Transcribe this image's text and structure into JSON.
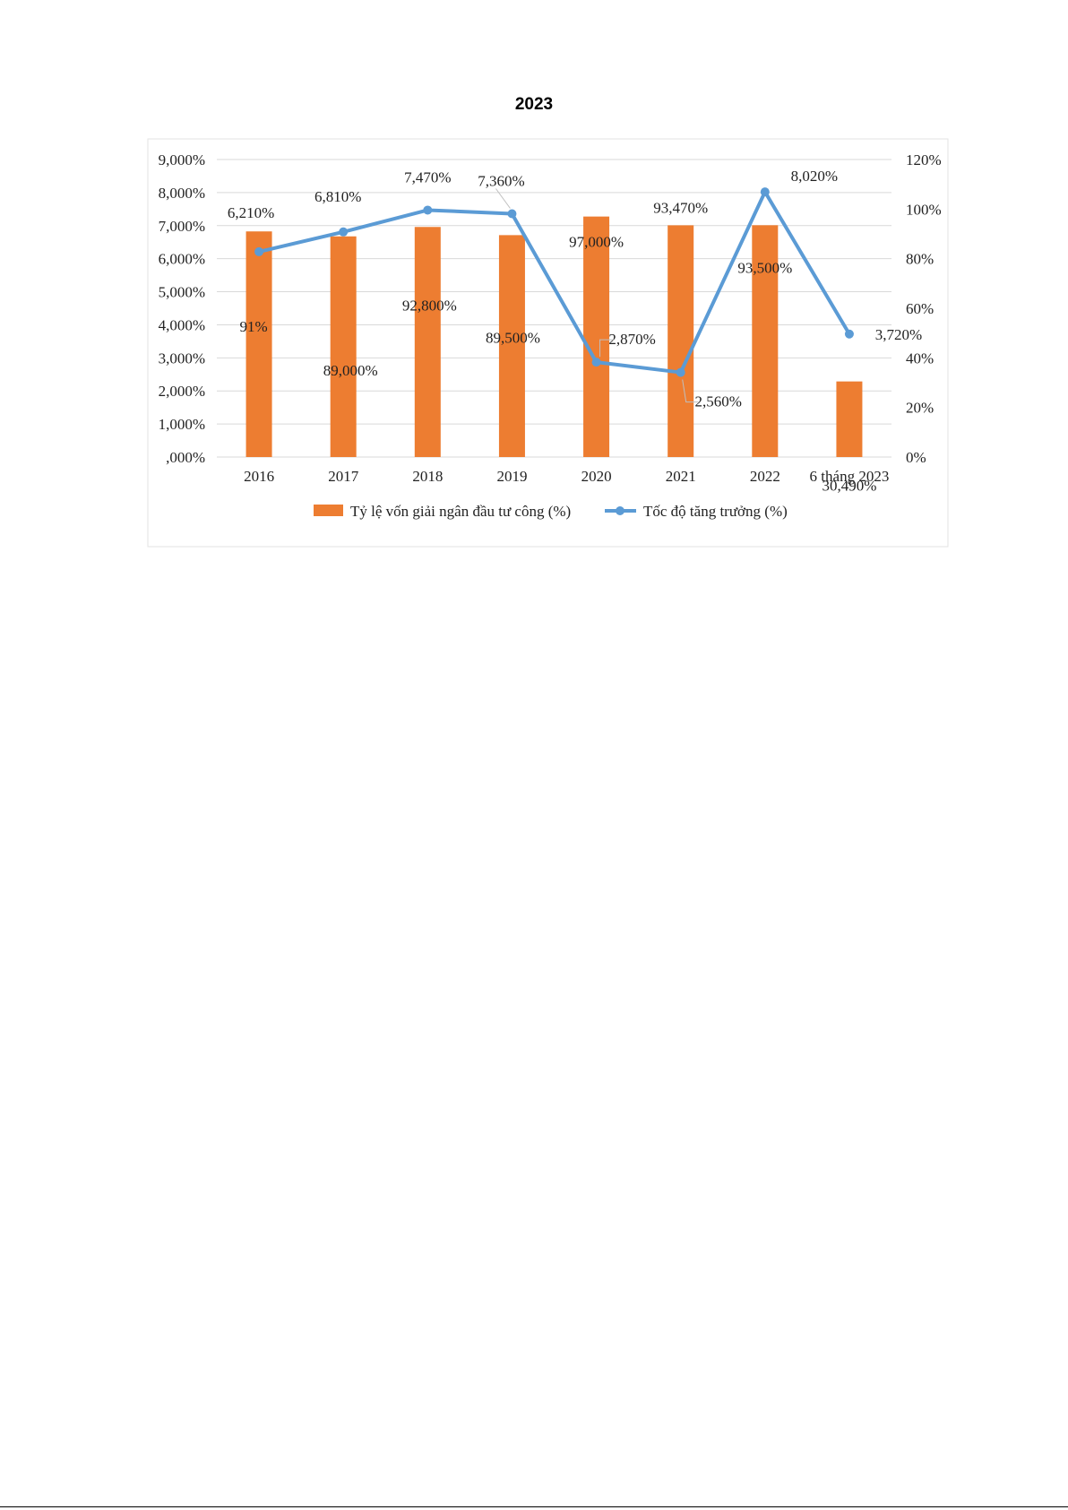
{
  "page": {
    "title": "2023"
  },
  "chart_data": {
    "type": "bar",
    "categories": [
      "2016",
      "2017",
      "2018",
      "2019",
      "2020",
      "2021",
      "2022",
      "6 tháng 2023"
    ],
    "y_left": {
      "range": [
        0,
        9
      ],
      "ticks": [
        "9,000%",
        "8,000%",
        "7,000%",
        "6,000%",
        "5,000%",
        "4,000%",
        "3,000%",
        "2,000%",
        "1,000%",
        ",000%"
      ]
    },
    "y_right": {
      "range": [
        0,
        120
      ],
      "ticks": [
        "120%",
        "100%",
        "80%",
        "60%",
        "40%",
        "20%",
        "0%"
      ]
    },
    "grid": true,
    "legend_position": "bottom",
    "series": [
      {
        "name": "Tỷ lệ vốn giải ngân đầu tư công (%)",
        "type": "bar",
        "axis": "right",
        "color": "#ED7D31",
        "values": [
          91.0,
          89.0,
          92.8,
          89.5,
          97.0,
          93.47,
          93.5,
          30.49
        ],
        "labels": [
          "91%",
          "89,000%",
          "92,800%",
          "89,500%",
          "97,000%",
          "93,470%",
          "93,500%",
          "30,490%"
        ]
      },
      {
        "name": "Tốc độ tăng trưởng (%)",
        "type": "line",
        "axis": "left",
        "color": "#5B9BD5",
        "values": [
          6.21,
          6.81,
          7.47,
          7.36,
          2.87,
          2.56,
          8.02,
          3.72
        ],
        "labels": [
          "6,210%",
          "6,810%",
          "7,470%",
          "7,360%",
          "2,870%",
          "2,560%",
          "8,020%",
          "3,720%"
        ]
      }
    ]
  }
}
